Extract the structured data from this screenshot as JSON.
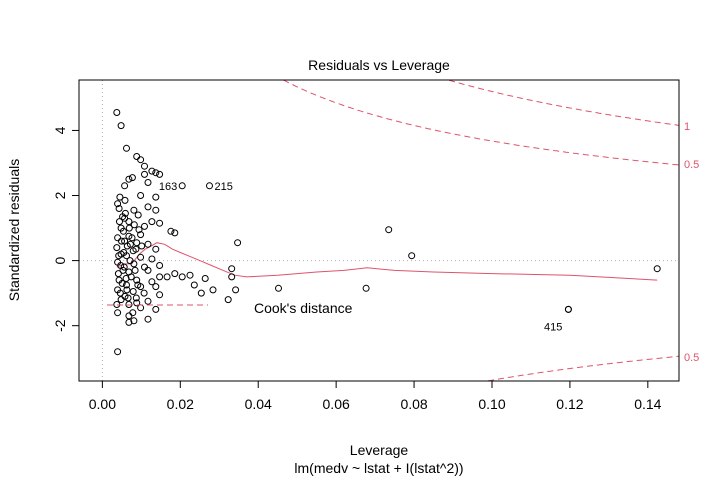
{
  "chart_data": {
    "type": "scatter",
    "title": "Residuals vs Leverage",
    "xlabel": "Leverage",
    "subtitle": "lm(medv ~ lstat + I(lstat^2))",
    "ylabel": "Standardized residuals",
    "xlim": [
      -0.006,
      0.148
    ],
    "ylim": [
      -3.7,
      5.55
    ],
    "xticks": [
      0.0,
      0.02,
      0.04,
      0.06,
      0.08,
      0.1,
      0.12,
      0.14
    ],
    "xtick_labels": [
      "0.00",
      "0.02",
      "0.04",
      "0.06",
      "0.08",
      "0.10",
      "0.12",
      "0.14"
    ],
    "yticks": [
      -2,
      0,
      2,
      4
    ],
    "ytick_labels": [
      "-2",
      "0",
      "2",
      "4"
    ],
    "grid": false,
    "colors": {
      "points": "#000000",
      "smoother": "#DF536B",
      "cooks": "#DF536B",
      "reference": "#b0b0b0"
    },
    "points": [
      [
        0.0037,
        4.55
      ],
      [
        0.0048,
        4.15
      ],
      [
        0.0062,
        3.45
      ],
      [
        0.0088,
        3.2
      ],
      [
        0.0098,
        3.1
      ],
      [
        0.0108,
        2.9
      ],
      [
        0.0127,
        2.75
      ],
      [
        0.0137,
        2.7
      ],
      [
        0.0147,
        2.65
      ],
      [
        0.0108,
        2.65
      ],
      [
        0.0068,
        2.5
      ],
      [
        0.0057,
        2.3
      ],
      [
        0.0077,
        2.55
      ],
      [
        0.0117,
        2.4
      ],
      [
        0.0045,
        1.95
      ],
      [
        0.0098,
        2.0
      ],
      [
        0.0137,
        1.95
      ],
      [
        0.0058,
        1.85
      ],
      [
        0.0039,
        1.75
      ],
      [
        0.0043,
        1.6
      ],
      [
        0.0081,
        1.55
      ],
      [
        0.0117,
        1.65
      ],
      [
        0.0137,
        1.55
      ],
      [
        0.0092,
        1.4
      ],
      [
        0.0057,
        1.3
      ],
      [
        0.0068,
        1.2
      ],
      [
        0.0127,
        1.2
      ],
      [
        0.0147,
        1.15
      ],
      [
        0.0108,
        1.05
      ],
      [
        0.0048,
        1.0
      ],
      [
        0.0176,
        0.9
      ],
      [
        0.0186,
        0.85
      ],
      [
        0.0098,
        0.8
      ],
      [
        0.0068,
        0.75
      ],
      [
        0.0039,
        0.7
      ],
      [
        0.0057,
        0.6
      ],
      [
        0.0088,
        0.55
      ],
      [
        0.0117,
        0.5
      ],
      [
        0.0347,
        0.55
      ],
      [
        0.0137,
        0.35
      ],
      [
        0.0079,
        0.3
      ],
      [
        0.0048,
        0.2
      ],
      [
        0.0062,
        0.15
      ],
      [
        0.0098,
        0.1
      ],
      [
        0.0127,
        0.05
      ],
      [
        0.0039,
        -0.05
      ],
      [
        0.0081,
        -0.1
      ],
      [
        0.0147,
        -0.15
      ],
      [
        0.0108,
        -0.2
      ],
      [
        0.0332,
        -0.25
      ],
      [
        0.0053,
        -0.3
      ],
      [
        0.0068,
        -0.35
      ],
      [
        0.0117,
        -0.3
      ],
      [
        0.0186,
        -0.4
      ],
      [
        0.0225,
        -0.45
      ],
      [
        0.0147,
        -0.5
      ],
      [
        0.0166,
        -0.5
      ],
      [
        0.0205,
        -0.5
      ],
      [
        0.0264,
        -0.55
      ],
      [
        0.0332,
        -0.5
      ],
      [
        0.0043,
        -0.6
      ],
      [
        0.0088,
        -0.6
      ],
      [
        0.0127,
        -0.65
      ],
      [
        0.0236,
        -0.75
      ],
      [
        0.0284,
        -0.9
      ],
      [
        0.0342,
        -0.9
      ],
      [
        0.0137,
        -0.8
      ],
      [
        0.0098,
        -0.8
      ],
      [
        0.0062,
        -0.75
      ],
      [
        0.0039,
        -0.9
      ],
      [
        0.0079,
        -0.95
      ],
      [
        0.0107,
        -1.0
      ],
      [
        0.0147,
        -1.05
      ],
      [
        0.0254,
        -1.0
      ],
      [
        0.0323,
        -1.2
      ],
      [
        0.0058,
        -1.1
      ],
      [
        0.0117,
        -1.25
      ],
      [
        0.0088,
        -1.3
      ],
      [
        0.0048,
        -1.2
      ],
      [
        0.0068,
        -1.35
      ],
      [
        0.0098,
        -1.45
      ],
      [
        0.0137,
        -1.5
      ],
      [
        0.0078,
        -1.6
      ],
      [
        0.0039,
        -1.6
      ],
      [
        0.0068,
        -1.7
      ],
      [
        0.0117,
        -1.8
      ],
      [
        0.0081,
        -1.85
      ],
      [
        0.0068,
        -1.9
      ],
      [
        0.0039,
        -2.8
      ],
      [
        0.0452,
        -0.85
      ],
      [
        0.0735,
        0.95
      ],
      [
        0.0794,
        0.15
      ],
      [
        0.0677,
        -0.85
      ],
      [
        0.1196,
        -1.5
      ],
      [
        0.1424,
        -0.25
      ],
      [
        0.0037,
        0.4
      ],
      [
        0.0041,
        -0.4
      ],
      [
        0.0044,
        1.2
      ],
      [
        0.0046,
        -1.0
      ],
      [
        0.0049,
        0.6
      ],
      [
        0.0051,
        -0.7
      ],
      [
        0.0054,
        0.9
      ],
      [
        0.0056,
        -0.2
      ],
      [
        0.0059,
        1.45
      ],
      [
        0.0061,
        -0.55
      ],
      [
        0.0064,
        0.45
      ],
      [
        0.0066,
        -1.15
      ],
      [
        0.0069,
        1.0
      ],
      [
        0.0071,
        0.0
      ],
      [
        0.0074,
        -0.5
      ],
      [
        0.0076,
        0.7
      ],
      [
        0.0084,
        -0.3
      ],
      [
        0.0086,
        0.35
      ],
      [
        0.0091,
        -0.75
      ],
      [
        0.0094,
        0.95
      ],
      [
        0.0037,
        -1.35
      ],
      [
        0.0042,
        0.15
      ],
      [
        0.0047,
        -0.15
      ],
      [
        0.0052,
        1.35
      ],
      [
        0.0055,
        0.25
      ],
      [
        0.0063,
        -0.9
      ],
      [
        0.0072,
        0.5
      ],
      [
        0.0082,
        1.1
      ],
      [
        0.0087,
        -1.15
      ],
      [
        0.0101,
        0.45
      ]
    ],
    "labelled_points": [
      {
        "label": "163",
        "x": 0.0205,
        "y": 2.3
      },
      {
        "label": "215",
        "x": 0.0275,
        "y": 2.3
      },
      {
        "label": "415",
        "x": 0.1196,
        "y": -1.5
      }
    ],
    "smoother": [
      [
        0.0037,
        -0.2
      ],
      [
        0.0055,
        -0.1
      ],
      [
        0.0075,
        -0.1
      ],
      [
        0.0095,
        0.2
      ],
      [
        0.011,
        0.35
      ],
      [
        0.0125,
        0.45
      ],
      [
        0.014,
        0.55
      ],
      [
        0.016,
        0.5
      ],
      [
        0.018,
        0.35
      ],
      [
        0.02,
        0.25
      ],
      [
        0.022,
        0.15
      ],
      [
        0.025,
        0.0
      ],
      [
        0.028,
        -0.15
      ],
      [
        0.031,
        -0.3
      ],
      [
        0.034,
        -0.45
      ],
      [
        0.037,
        -0.5
      ],
      [
        0.045,
        -0.45
      ],
      [
        0.055,
        -0.35
      ],
      [
        0.062,
        -0.3
      ],
      [
        0.068,
        -0.22
      ],
      [
        0.075,
        -0.3
      ],
      [
        0.085,
        -0.35
      ],
      [
        0.1,
        -0.4
      ],
      [
        0.12,
        -0.45
      ],
      [
        0.1424,
        -0.6
      ]
    ],
    "cooks_legend_label": "Cook's distance",
    "cooks_contour_labels": [
      "1",
      "0.5",
      "0.5"
    ]
  }
}
